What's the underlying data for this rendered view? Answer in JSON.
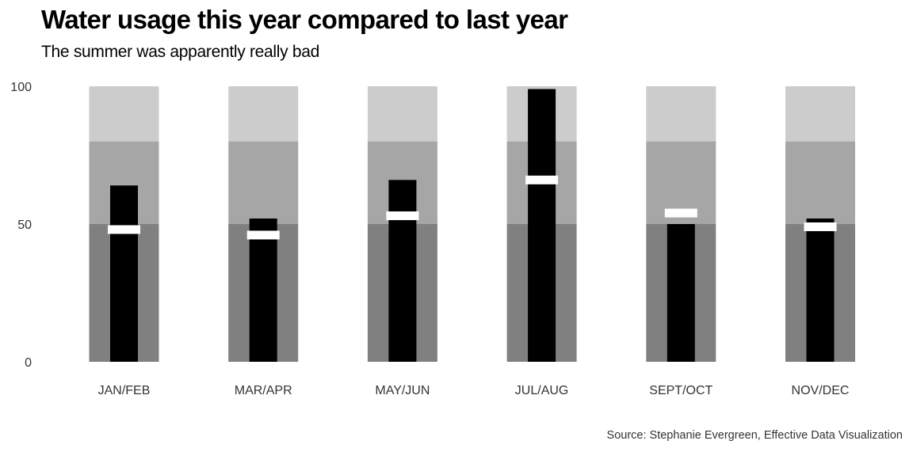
{
  "chart_data": {
    "type": "bar",
    "subtype": "bullet",
    "title": "Water usage this year compared to last year",
    "subtitle": "The summer was apparently really bad",
    "caption": "Source: Stephanie Evergreen, Effective Data Visualization",
    "xlabel": "",
    "ylabel": "",
    "ylim": [
      0,
      100
    ],
    "yticks": [
      0,
      50,
      100
    ],
    "grid": false,
    "categories": [
      "JAN/FEB",
      "MAR/APR",
      "MAY/JUN",
      "JUL/AUG",
      "SEPT/OCT",
      "NOV/DEC"
    ],
    "qualitative_ranges": [
      50,
      80,
      100
    ],
    "series": [
      {
        "values": [
          64,
          52,
          66,
          99,
          50,
          52
        ]
      },
      {
        "values": [
          48,
          46,
          53,
          66,
          54,
          49
        ]
      }
    ],
    "colors": {
      "range_low": "#808080",
      "range_mid": "#a6a6a6",
      "range_high": "#cccccc",
      "bar": "#000000",
      "marker": "#ffffff"
    }
  }
}
